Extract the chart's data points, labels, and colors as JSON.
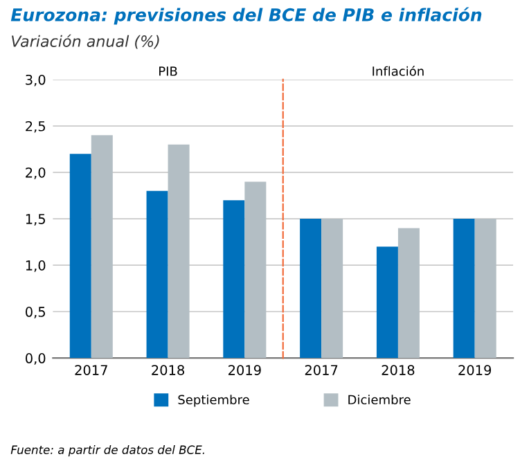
{
  "chart_data": [
    {
      "type": "bar",
      "title": "PIB",
      "categories": [
        "2017",
        "2018",
        "2019"
      ],
      "series": [
        {
          "name": "Septiembre",
          "color": "#0071bc",
          "values": [
            2.2,
            1.8,
            1.7
          ]
        },
        {
          "name": "Diciembre",
          "color": "#b3bec4",
          "values": [
            2.4,
            2.3,
            1.9
          ]
        }
      ],
      "ylim": [
        0,
        3
      ],
      "yticks": [
        {
          "value": 0,
          "label": "0,0"
        },
        {
          "value": 0.5,
          "label": "0,5"
        },
        {
          "value": 1,
          "label": "1,0"
        },
        {
          "value": 1.5,
          "label": "1,5"
        },
        {
          "value": 2,
          "label": "2,0"
        },
        {
          "value": 2.5,
          "label": "2,5"
        },
        {
          "value": 3,
          "label": "3,0"
        }
      ],
      "grid": "y",
      "legend": "bottom",
      "annotations": [
        "Eurozona: previsiones del BCE de PIB e inflación",
        "Variación anual (%)",
        "Fuente: a partir de datos del BCE."
      ]
    },
    {
      "type": "bar",
      "title": "Inflación",
      "categories": [
        "2017",
        "2018",
        "2019"
      ],
      "series": [
        {
          "color": "#0071bc",
          "values": [
            1.5,
            1.2,
            1.5
          ]
        },
        {
          "color": "#b3bec4",
          "values": [
            1.5,
            1.4,
            1.5
          ]
        }
      ],
      "ylim": [
        0,
        3
      ],
      "yticks": [
        {
          "value": 0,
          "label": null
        },
        {
          "value": 0.5,
          "label": null
        },
        {
          "value": 1,
          "label": null
        },
        {
          "value": 1.5,
          "label": null
        },
        {
          "value": 2,
          "label": null
        },
        {
          "value": 2.5,
          "label": null
        },
        {
          "value": 3,
          "label": null
        }
      ],
      "grid": "y",
      "tick_labels": "x"
    }
  ]
}
